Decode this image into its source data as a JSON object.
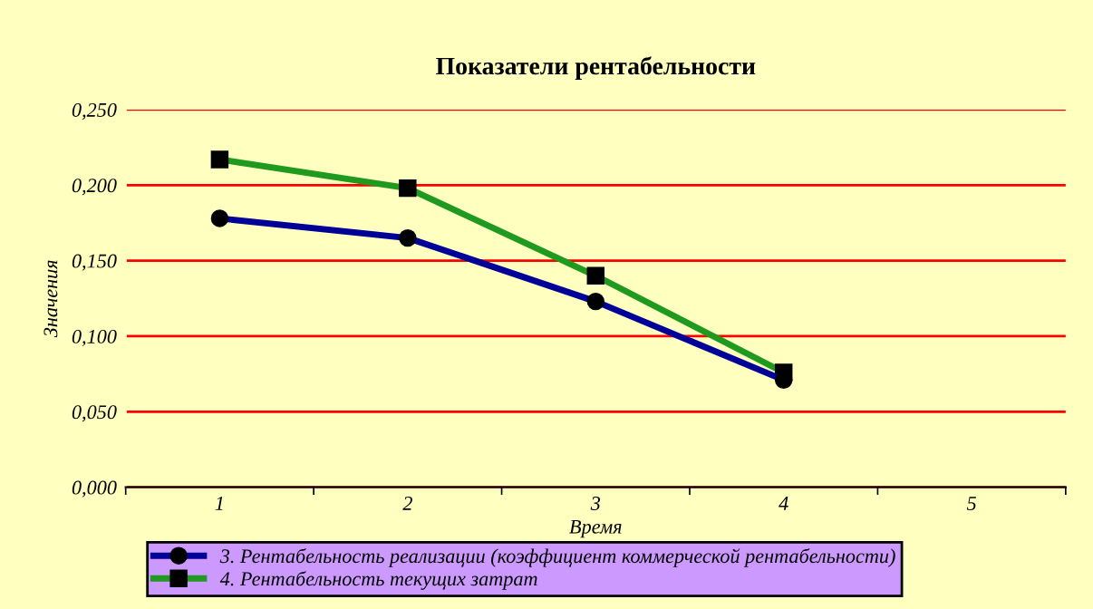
{
  "chart_data": {
    "type": "line",
    "title": "Показатели рентабельности",
    "xlabel": "Время",
    "ylabel": "Значения",
    "categories": [
      "1",
      "2",
      "3",
      "4",
      "5"
    ],
    "series": [
      {
        "name": "3. Рентабельность реализации (коэффициент коммерческой рентабельности)",
        "color": "#000099",
        "marker": "circle",
        "values": [
          0.178,
          0.165,
          0.123,
          0.071,
          null
        ]
      },
      {
        "name": "4. Рентабельность текущих затрат",
        "color": "#1f9a1f",
        "marker": "square",
        "values": [
          0.217,
          0.198,
          0.14,
          0.076,
          null
        ]
      }
    ],
    "ylim": [
      0,
      0.25
    ],
    "yticks": [
      {
        "value": 0,
        "label": "0,000"
      },
      {
        "value": 0.05,
        "label": "0,050"
      },
      {
        "value": 0.1,
        "label": "0,100"
      },
      {
        "value": 0.15,
        "label": "0,150"
      },
      {
        "value": 0.2,
        "label": "0,200"
      },
      {
        "value": 0.25,
        "label": "0,250"
      }
    ],
    "grid": "y",
    "legend": "bottom"
  }
}
